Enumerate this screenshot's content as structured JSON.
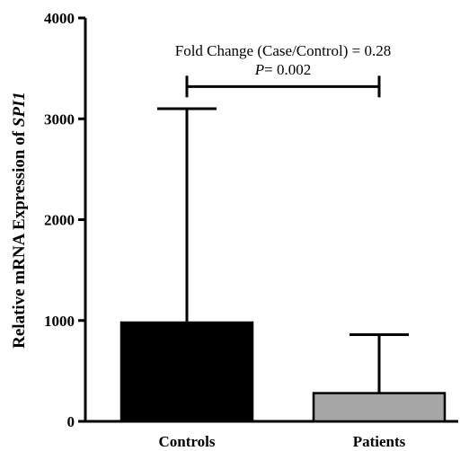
{
  "chart_data": {
    "type": "bar",
    "title": "",
    "xlabel": "",
    "ylabel": "Relative mRNA Expression of ",
    "ylabel_italic": "SPI1",
    "ylim": [
      0,
      4000
    ],
    "yticks": [
      0,
      1000,
      2000,
      3000,
      4000
    ],
    "categories": [
      "Controls",
      "Patients"
    ],
    "values": [
      980,
      280
    ],
    "error_upper": [
      3100,
      860
    ],
    "bar_colors": [
      "#000000",
      "#a6a6a6"
    ],
    "grid": false,
    "annotation": {
      "line1": "Fold Change (Case/Control) = 0.28",
      "p_symbol": "P",
      "p_rest": "= 0.002",
      "bracket_y": 3320
    }
  }
}
